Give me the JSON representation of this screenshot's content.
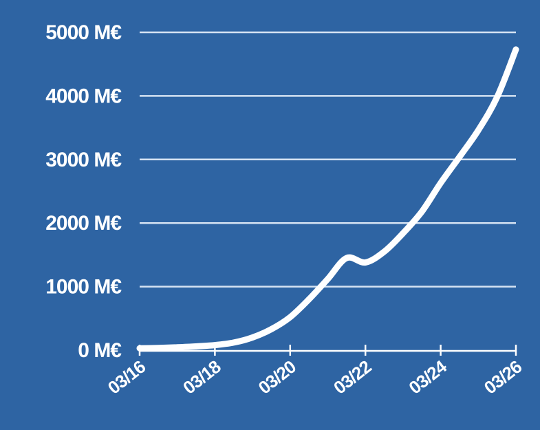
{
  "chart_data": {
    "type": "line",
    "title": "",
    "xlabel": "",
    "ylabel": "",
    "x_tick_labels": [
      "03/16",
      "03/18",
      "03/20",
      "03/22",
      "03/24",
      "03/26"
    ],
    "y_tick_labels": [
      "0 M€",
      "1000 M€",
      "2000 M€",
      "3000 M€",
      "4000 M€",
      "5000 M€"
    ],
    "y_ticks": [
      0,
      1000,
      2000,
      3000,
      4000,
      5000
    ],
    "ylim": [
      0,
      5000
    ],
    "xlim": [
      "2016-03",
      "2026-03"
    ],
    "grid": "horizontal",
    "colors": {
      "background": "#2e64a3",
      "line": "#ffffff",
      "grid": "#d6e3f3"
    },
    "series": [
      {
        "x": [
          "2016-03",
          "2016-09",
          "2017-03",
          "2017-09",
          "2018-03",
          "2018-09",
          "2019-03",
          "2019-09",
          "2020-03",
          "2020-09",
          "2021-03",
          "2021-09",
          "2022-03",
          "2022-09",
          "2023-03",
          "2023-09",
          "2024-03",
          "2024-09",
          "2025-03",
          "2025-09",
          "2026-03"
        ],
        "values": [
          30,
          35,
          45,
          60,
          80,
          120,
          200,
          330,
          520,
          800,
          1120,
          1450,
          1380,
          1550,
          1840,
          2180,
          2630,
          3040,
          3460,
          3980,
          4730
        ]
      }
    ]
  }
}
